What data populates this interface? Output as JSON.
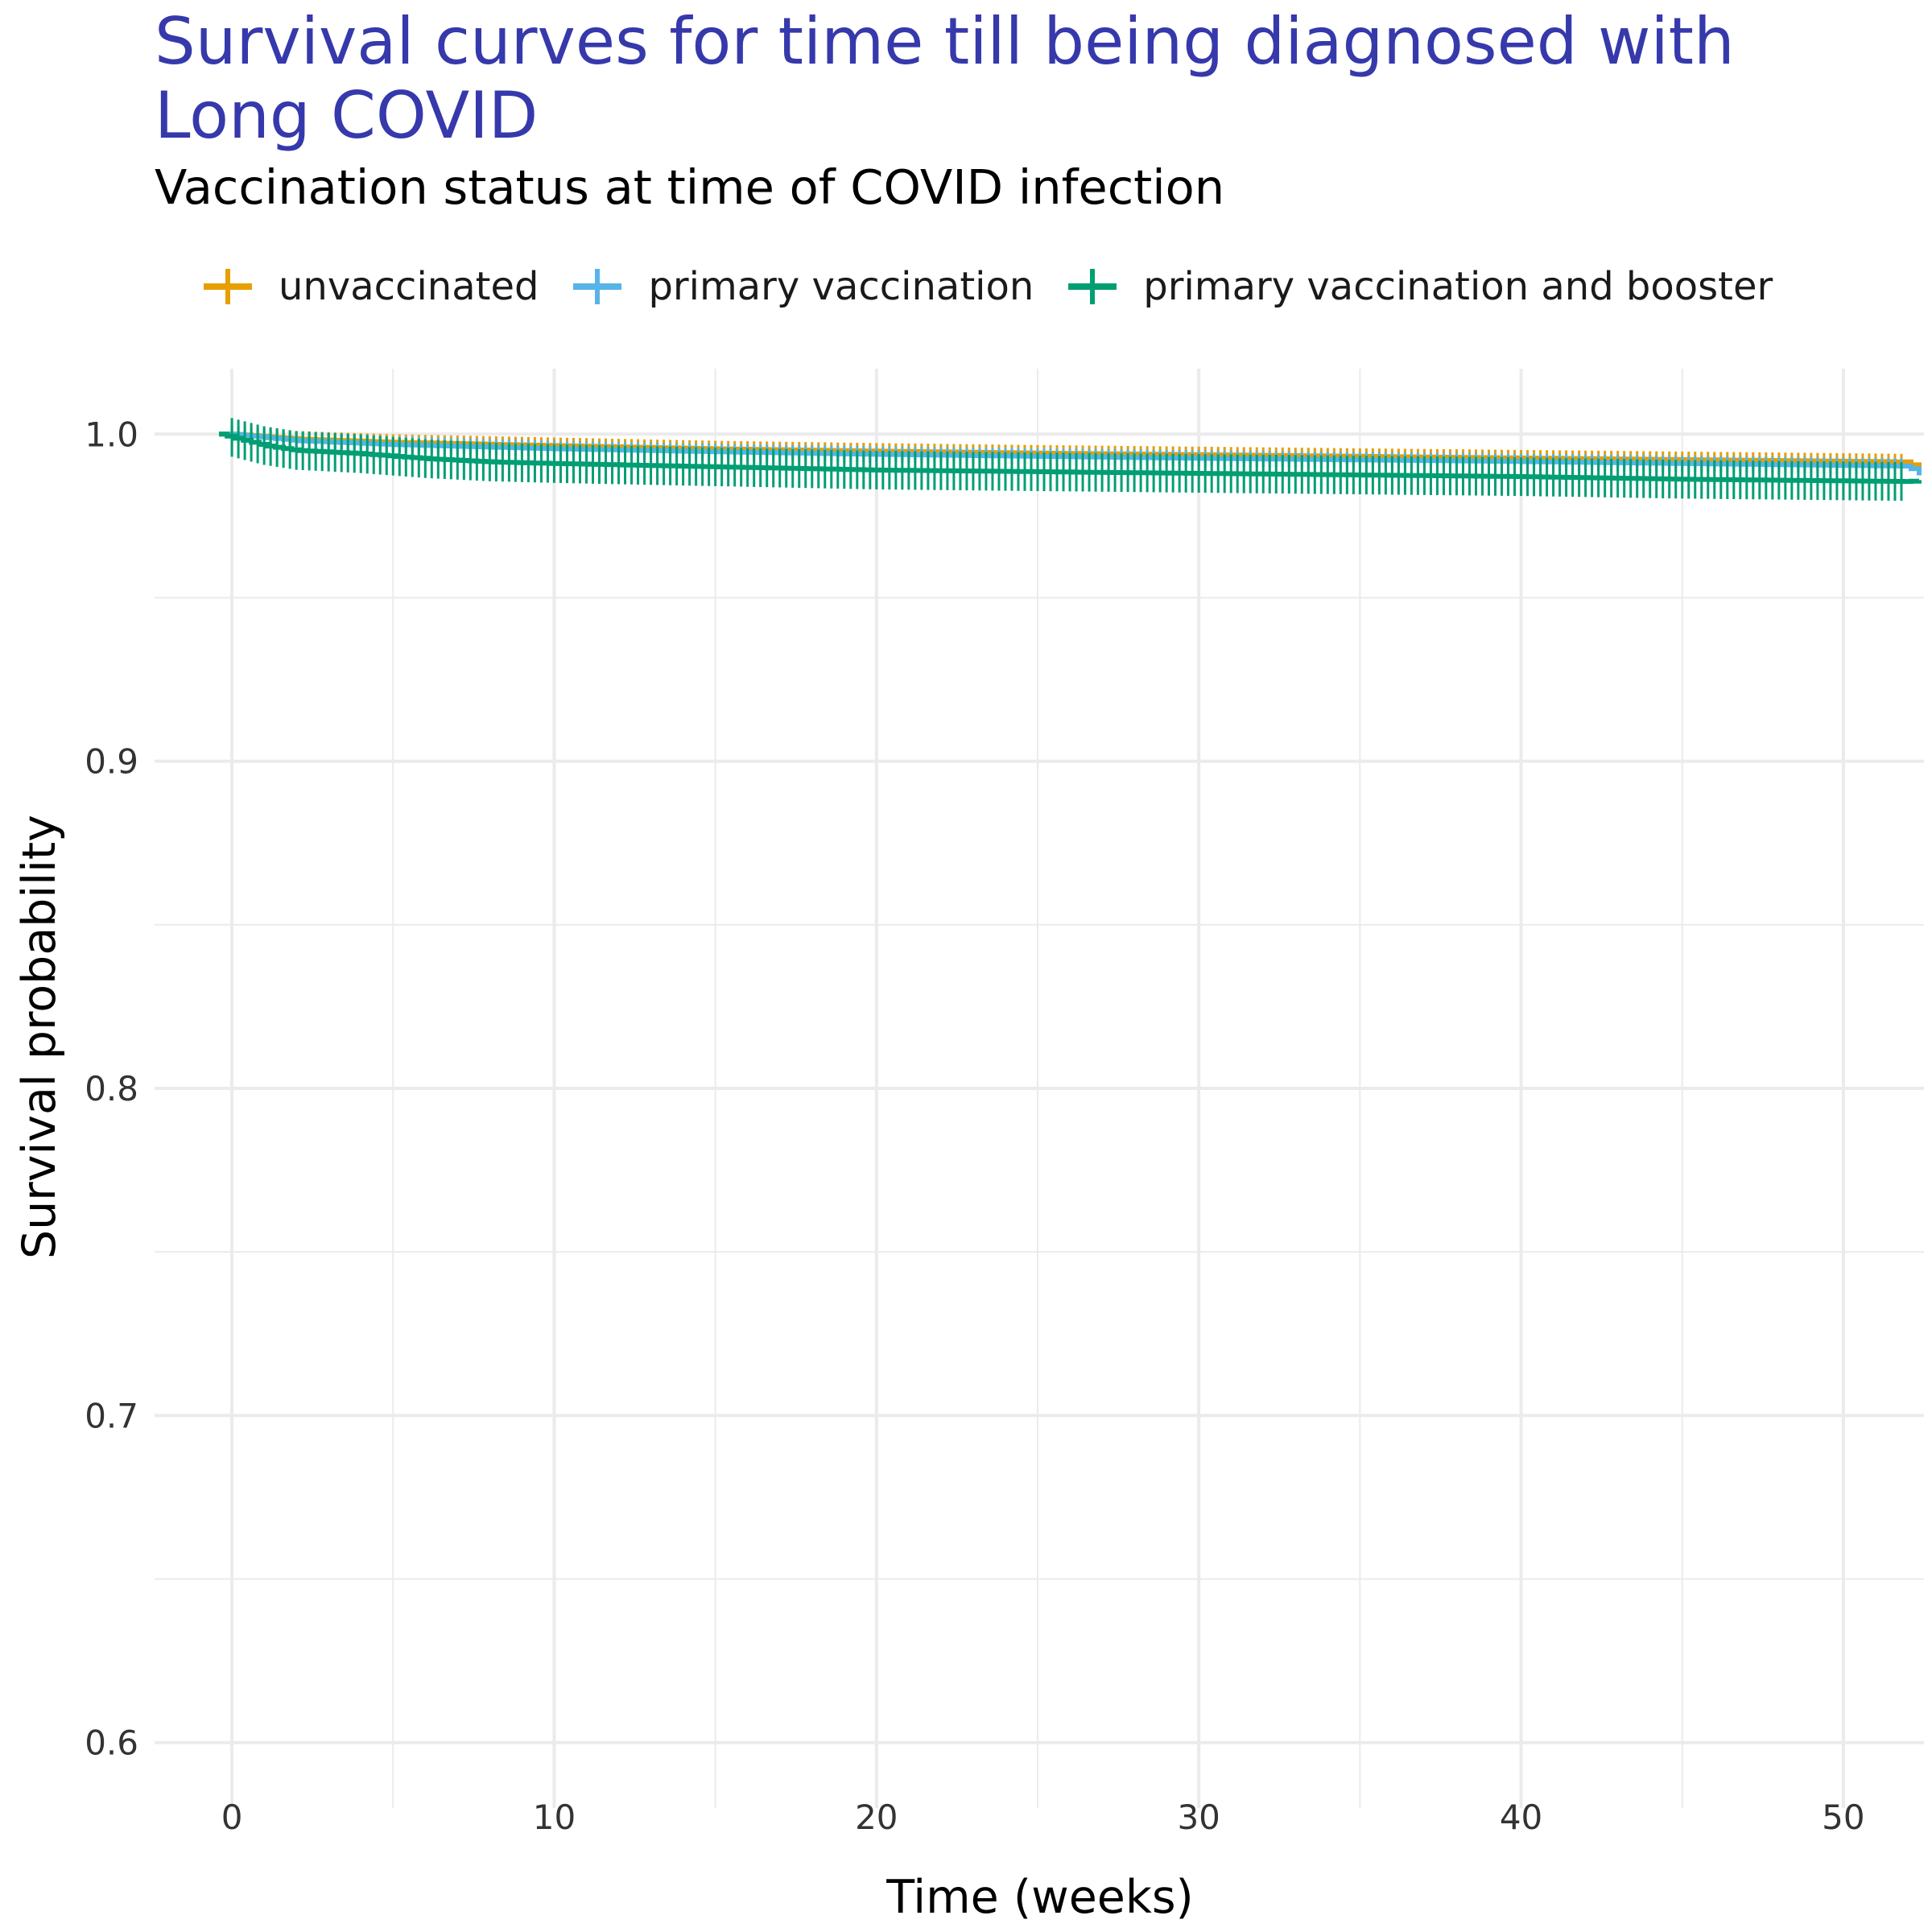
{
  "chart_data": {
    "type": "line",
    "title": "Survival curves for time till being diagnosed with Long COVID",
    "subtitle": "Vaccination status at time of COVID infection",
    "xlabel": "Time (weeks)",
    "ylabel": "Survival probability",
    "xlim": [
      -2.4,
      52.5
    ],
    "ylim": [
      0.58,
      1.02
    ],
    "x_ticks": [
      0,
      10,
      20,
      30,
      40,
      50
    ],
    "x_tick_labels": [
      "0",
      "10",
      "20",
      "30",
      "40",
      "50"
    ],
    "y_ticks": [
      0.6,
      0.7,
      0.8,
      0.9,
      1.0
    ],
    "y_tick_labels": [
      "0.6",
      "0.7",
      "0.8",
      "0.9",
      "1.0"
    ],
    "grid": true,
    "legend_position": "top",
    "series": [
      {
        "name": "unvaccinated",
        "color": "#E69F00",
        "x": [
          -0.4,
          0,
          2,
          5,
          10,
          15,
          20,
          25,
          30,
          35,
          40,
          45,
          52,
          52.4
        ],
        "y": [
          1.0,
          1.0,
          0.9985,
          0.9975,
          0.9965,
          0.9955,
          0.9948,
          0.9942,
          0.9937,
          0.9932,
          0.9927,
          0.9922,
          0.9915,
          0.988
        ]
      },
      {
        "name": "primary vaccination",
        "color": "#56B4E9",
        "x": [
          -0.4,
          0,
          2,
          5,
          10,
          15,
          20,
          25,
          30,
          35,
          40,
          45,
          52,
          52.4
        ],
        "y": [
          1.0,
          1.0,
          0.998,
          0.9968,
          0.9955,
          0.9946,
          0.9938,
          0.9932,
          0.9926,
          0.9921,
          0.9916,
          0.991,
          0.9902,
          0.987
        ]
      },
      {
        "name": "primary vaccination and booster",
        "color": "#009E73",
        "x": [
          -0.4,
          0,
          1,
          2,
          4,
          6,
          8,
          10,
          15,
          20,
          25,
          30,
          35,
          40,
          45,
          52,
          52.4
        ],
        "y": [
          1.0,
          0.999,
          0.9965,
          0.995,
          0.994,
          0.9925,
          0.9915,
          0.991,
          0.99,
          0.989,
          0.9885,
          0.988,
          0.9875,
          0.987,
          0.9862,
          0.9855,
          0.986
        ]
      }
    ]
  }
}
